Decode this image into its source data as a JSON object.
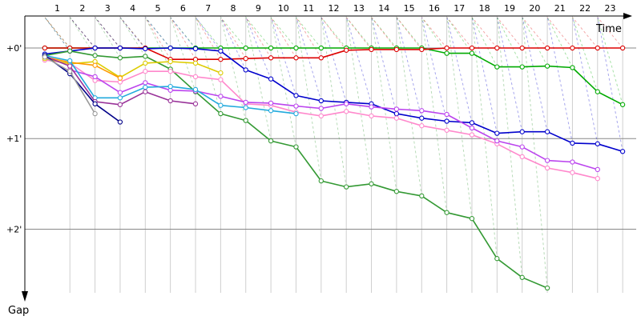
{
  "chart_data": {
    "type": "line",
    "xlabel": "Time",
    "ylabel": "Gap",
    "x_ticks": [
      "1",
      "2",
      "3",
      "4",
      "5",
      "6",
      "7",
      "8",
      "9",
      "10",
      "11",
      "12",
      "13",
      "14",
      "15",
      "16",
      "17",
      "18",
      "19",
      "20",
      "21",
      "22",
      "23"
    ],
    "y_ticks": [
      {
        "value": 0,
        "label": "+0'"
      },
      {
        "value": 60,
        "label": "+1'"
      },
      {
        "value": 120,
        "label": "+2'"
      }
    ],
    "xlim": [
      0,
      24.4
    ],
    "ylim": [
      -14,
      168
    ],
    "grid": true,
    "series": [
      {
        "color": "#00aa00",
        "points": [
          [
            1,
            0
          ],
          [
            2,
            0
          ],
          [
            3,
            0
          ],
          [
            4,
            0
          ],
          [
            5,
            0
          ],
          [
            6,
            0
          ],
          [
            7,
            0
          ],
          [
            8,
            0
          ],
          [
            9,
            0
          ],
          [
            10,
            0
          ],
          [
            11,
            0
          ],
          [
            12,
            0
          ],
          [
            13,
            0
          ],
          [
            14,
            0
          ],
          [
            15,
            0
          ],
          [
            16,
            0
          ],
          [
            17,
            3.5
          ],
          [
            18,
            3.5
          ],
          [
            19,
            12.5
          ],
          [
            20,
            12.5
          ],
          [
            21,
            12
          ],
          [
            22,
            13
          ],
          [
            23,
            29
          ],
          [
            24,
            37.5
          ]
        ]
      },
      {
        "color": "#dd0000",
        "points": [
          [
            1,
            0
          ],
          [
            2,
            0
          ],
          [
            3,
            0
          ],
          [
            4,
            0
          ],
          [
            5,
            0
          ],
          [
            6,
            7.5
          ],
          [
            7,
            7.5
          ],
          [
            8,
            7.5
          ],
          [
            9,
            7
          ],
          [
            10,
            6.5
          ],
          [
            11,
            6.5
          ],
          [
            12,
            6.5
          ],
          [
            13,
            1.5
          ],
          [
            14,
            1
          ],
          [
            15,
            1
          ],
          [
            16,
            1
          ],
          [
            17,
            0
          ],
          [
            18,
            0
          ],
          [
            19,
            0
          ],
          [
            20,
            0
          ],
          [
            21,
            0
          ],
          [
            22,
            0
          ],
          [
            23,
            0
          ],
          [
            24,
            0
          ]
        ]
      },
      {
        "color": "#0000cc",
        "points": [
          [
            1,
            4
          ],
          [
            2,
            2
          ],
          [
            3,
            0
          ],
          [
            4,
            0
          ],
          [
            5,
            0.5
          ],
          [
            6,
            0
          ],
          [
            7,
            0.5
          ],
          [
            8,
            2
          ],
          [
            9,
            14.5
          ],
          [
            10,
            20.5
          ],
          [
            11,
            31.5
          ],
          [
            12,
            35
          ],
          [
            13,
            36
          ],
          [
            14,
            37
          ],
          [
            15,
            43.5
          ],
          [
            16,
            46.5
          ],
          [
            17,
            48.5
          ],
          [
            18,
            49.5
          ],
          [
            19,
            56.5
          ],
          [
            20,
            55.5
          ],
          [
            21,
            55.5
          ],
          [
            22,
            63
          ],
          [
            23,
            63.5
          ],
          [
            24,
            68.5
          ]
        ]
      },
      {
        "color": "#339933",
        "points": [
          [
            1,
            5
          ],
          [
            2,
            2
          ],
          [
            3,
            5
          ],
          [
            4,
            6.5
          ],
          [
            5,
            5.5
          ],
          [
            6,
            14
          ],
          [
            7,
            29
          ],
          [
            8,
            43.5
          ],
          [
            9,
            48
          ],
          [
            10,
            61.5
          ],
          [
            11,
            65.5
          ],
          [
            12,
            88
          ],
          [
            13,
            92
          ],
          [
            14,
            90
          ],
          [
            15,
            95
          ],
          [
            16,
            98
          ],
          [
            17,
            109
          ],
          [
            18,
            113
          ],
          [
            19,
            139.5
          ],
          [
            20,
            152
          ],
          [
            21,
            159
          ]
        ]
      },
      {
        "color": "#ff88cc",
        "points": [
          [
            1,
            8
          ],
          [
            2,
            10
          ],
          [
            3,
            21.5
          ],
          [
            4,
            22.5
          ],
          [
            5,
            15.5
          ],
          [
            6,
            15.5
          ],
          [
            7,
            19
          ],
          [
            8,
            21
          ],
          [
            9,
            37
          ],
          [
            10,
            38
          ],
          [
            11,
            42.5
          ],
          [
            12,
            45
          ],
          [
            13,
            42
          ],
          [
            14,
            45
          ],
          [
            15,
            46.5
          ],
          [
            16,
            51.5
          ],
          [
            17,
            54.5
          ],
          [
            18,
            57.5
          ],
          [
            19,
            63.5
          ],
          [
            20,
            72
          ],
          [
            21,
            79.5
          ],
          [
            22,
            82.5
          ],
          [
            23,
            86.5
          ]
        ]
      },
      {
        "color": "#bb44ee",
        "points": [
          [
            2,
            14.5
          ],
          [
            3,
            19
          ],
          [
            4,
            29.5
          ],
          [
            5,
            23
          ],
          [
            6,
            28
          ],
          [
            7,
            28.5
          ],
          [
            8,
            32
          ],
          [
            9,
            36
          ],
          [
            10,
            36.5
          ],
          [
            11,
            38.5
          ],
          [
            12,
            40
          ],
          [
            13,
            37
          ],
          [
            14,
            39
          ],
          [
            15,
            40.5
          ],
          [
            16,
            41.5
          ],
          [
            17,
            44
          ],
          [
            18,
            53
          ],
          [
            19,
            61.5
          ],
          [
            20,
            65.5
          ],
          [
            21,
            74.5
          ],
          [
            22,
            75.5
          ],
          [
            23,
            80.5
          ]
        ]
      },
      {
        "color": "#ddcc00",
        "points": [
          [
            1,
            7
          ],
          [
            2,
            10.5
          ],
          [
            3,
            9
          ],
          [
            4,
            19.5
          ],
          [
            5,
            10
          ],
          [
            6,
            9
          ],
          [
            7,
            10
          ],
          [
            8,
            16.5
          ]
        ]
      },
      {
        "color": "#ff9900",
        "points": [
          [
            1,
            6
          ],
          [
            2,
            9.5
          ],
          [
            3,
            11.5
          ],
          [
            4,
            20
          ]
        ]
      },
      {
        "color": "#22aadd",
        "points": [
          [
            1,
            5
          ],
          [
            2,
            8.5
          ],
          [
            3,
            33
          ],
          [
            4,
            33
          ],
          [
            5,
            26
          ],
          [
            6,
            25.5
          ],
          [
            7,
            27.5
          ],
          [
            8,
            38
          ],
          [
            9,
            39.5
          ],
          [
            10,
            41.5
          ],
          [
            11,
            43.5
          ]
        ]
      },
      {
        "color": "#993399",
        "points": [
          [
            1,
            5.5
          ],
          [
            2,
            12
          ],
          [
            3,
            35.5
          ],
          [
            4,
            37.5
          ],
          [
            5,
            29
          ],
          [
            6,
            35
          ],
          [
            7,
            37
          ]
        ]
      },
      {
        "color": "#000088",
        "points": [
          [
            1,
            5
          ],
          [
            2,
            17
          ],
          [
            3,
            37
          ],
          [
            4,
            49
          ]
        ]
      },
      {
        "color": "#999999",
        "points": [
          [
            1,
            6
          ],
          [
            2,
            15.5
          ],
          [
            3,
            43.5
          ]
        ]
      }
    ]
  }
}
